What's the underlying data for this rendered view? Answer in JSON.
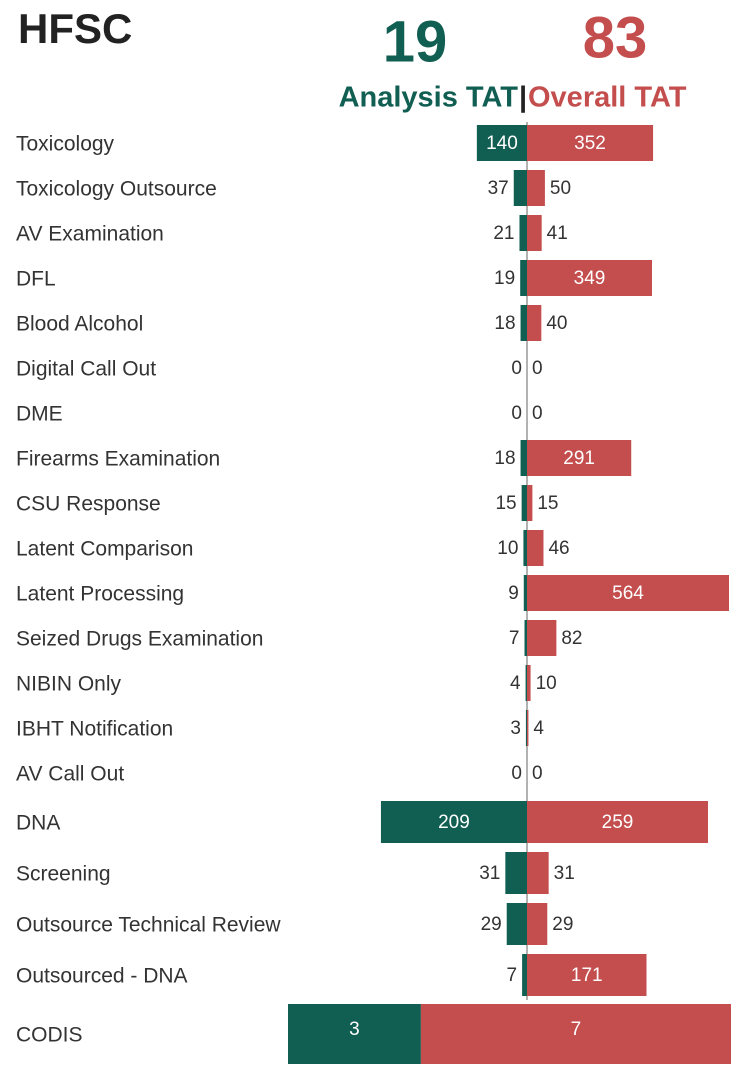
{
  "header": {
    "title": "HFSC",
    "analysis_value": 19,
    "analysis_label": "Analysis TAT",
    "overall_value": 83,
    "overall_label": "Overall TAT"
  },
  "chart_data": [
    {
      "type": "diverging_bar",
      "categories": [
        "Toxicology",
        "Toxicology Outsource",
        "AV Examination",
        "DFL",
        "Blood Alcohol",
        "Digital Call Out",
        "DME",
        "Firearms Examination",
        "CSU Response",
        "Latent Comparison",
        "Latent Processing",
        "Seized Drugs Examination",
        "NIBIN Only",
        "IBHT Notification",
        "AV Call Out"
      ],
      "series": [
        {
          "name": "Analysis TAT",
          "color": "#115e52",
          "values": [
            140,
            37,
            21,
            19,
            18,
            0,
            0,
            18,
            15,
            10,
            9,
            7,
            4,
            3,
            0
          ]
        },
        {
          "name": "Overall TAT",
          "color": "#c44d4d",
          "values": [
            352,
            50,
            41,
            349,
            40,
            0,
            0,
            291,
            15,
            46,
            564,
            82,
            10,
            4,
            0
          ]
        }
      ]
    },
    {
      "type": "diverging_bar",
      "categories": [
        "DNA",
        "Screening",
        "Outsource Technical Review",
        "Outsourced - DNA"
      ],
      "series": [
        {
          "name": "Analysis TAT",
          "color": "#115e52",
          "values": [
            209,
            31,
            29,
            7
          ]
        },
        {
          "name": "Overall TAT",
          "color": "#c44d4d",
          "values": [
            259,
            31,
            29,
            171
          ]
        }
      ]
    },
    {
      "type": "stacked_bar",
      "categories": [
        "CODIS"
      ],
      "series": [
        {
          "name": "Analysis TAT",
          "color": "#115e52",
          "values": [
            3
          ]
        },
        {
          "name": "Overall TAT",
          "color": "#c44d4d",
          "values": [
            7
          ]
        }
      ]
    }
  ]
}
